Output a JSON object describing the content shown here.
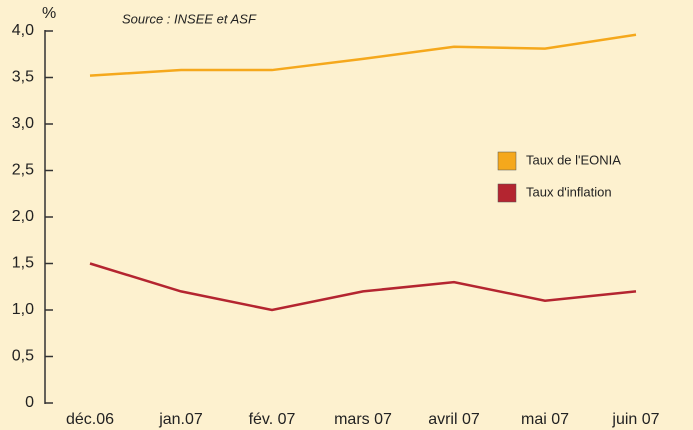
{
  "chart_data": {
    "type": "line",
    "y_label": "%",
    "annotation": "Source : INSEE et ASF",
    "categories": [
      "déc.06",
      "jan.07",
      "fév. 07",
      "mars 07",
      "avril 07",
      "mai 07",
      "juin 07"
    ],
    "series": [
      {
        "name": "Taux de l'EONIA",
        "color": "#f5a81c",
        "values": [
          3.52,
          3.58,
          3.58,
          3.7,
          3.83,
          3.81,
          3.96
        ]
      },
      {
        "name": "Taux d'inflation",
        "color": "#b42530",
        "values": [
          1.5,
          1.2,
          1.0,
          1.2,
          1.3,
          1.1,
          1.2
        ]
      }
    ],
    "ylim": [
      0,
      4
    ],
    "yticks": [
      0,
      {
        "value": 0.5,
        "label": "0,5"
      },
      {
        "value": 1,
        "label": "1,0"
      },
      {
        "value": 1.5,
        "label": "1,5"
      },
      {
        "value": 2,
        "label": "2,0"
      },
      {
        "value": 2.5,
        "label": "2,5"
      },
      {
        "value": 3,
        "label": "3,0"
      },
      {
        "value": 3.5,
        "label": "3,5"
      },
      {
        "value": 4,
        "label": "4,0"
      }
    ],
    "legend": "right"
  }
}
